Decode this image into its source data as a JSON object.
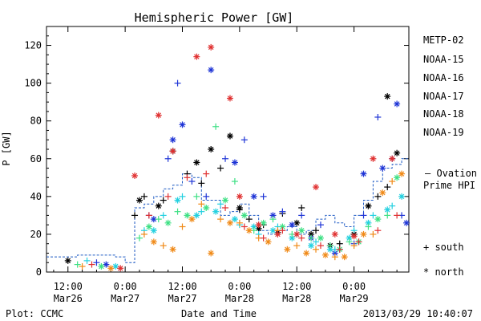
{
  "chart_data": {
    "type": "scatter",
    "title": "Hemispheric Power [GW]",
    "ylabel": "P [GW]",
    "xlabel": "Date and Time",
    "ylim": [
      0,
      130
    ],
    "xlim_hours": [
      -16.5,
      59.5
    ],
    "y_ticks": [
      0,
      20,
      40,
      60,
      80,
      100,
      120
    ],
    "x_ticks": [
      {
        "time": "12:00",
        "date": "Mar26"
      },
      {
        "time": "0:00",
        "date": "Mar27"
      },
      {
        "time": "12:00",
        "date": "Mar27"
      },
      {
        "time": "0:00",
        "date": "Mar28"
      },
      {
        "time": "12:00",
        "date": "Mar28"
      },
      {
        "time": "0:00",
        "date": "Mar29"
      }
    ],
    "x_tick_hours": [
      -12,
      0,
      12,
      24,
      36,
      48
    ],
    "legend_position": "right",
    "series": [
      {
        "name": "METP-02",
        "color": "#000000",
        "south": [
          [
            2,
            30
          ],
          [
            4,
            40
          ],
          [
            8,
            38
          ],
          [
            10,
            64
          ],
          [
            13,
            52
          ],
          [
            16,
            47
          ],
          [
            20,
            55
          ],
          [
            22,
            72
          ],
          [
            24,
            33
          ],
          [
            26,
            28
          ],
          [
            29,
            25
          ],
          [
            33,
            31
          ],
          [
            37,
            34
          ],
          [
            40,
            22
          ],
          [
            45,
            15
          ],
          [
            48,
            20
          ],
          [
            51,
            35
          ],
          [
            53,
            40
          ],
          [
            55,
            45
          ]
        ],
        "north": [
          [
            -12,
            6
          ],
          [
            3,
            38
          ],
          [
            7,
            35
          ],
          [
            10,
            64
          ],
          [
            15,
            58
          ],
          [
            18,
            65
          ],
          [
            22,
            72
          ],
          [
            24,
            34
          ],
          [
            28,
            23
          ],
          [
            32,
            21
          ],
          [
            36,
            26
          ],
          [
            39,
            20
          ],
          [
            43,
            14
          ],
          [
            48,
            20
          ],
          [
            51,
            35
          ],
          [
            55,
            93
          ],
          [
            57,
            63
          ]
        ]
      },
      {
        "name": "NOAA-15",
        "color": "#1f35d6",
        "south": [
          [
            -6,
            5
          ],
          [
            5,
            30
          ],
          [
            9,
            60
          ],
          [
            11,
            100
          ],
          [
            14,
            48
          ],
          [
            17,
            40
          ],
          [
            21,
            60
          ],
          [
            25,
            70
          ],
          [
            29,
            40
          ],
          [
            33,
            32
          ],
          [
            37,
            30
          ],
          [
            41,
            25
          ],
          [
            45,
            12
          ],
          [
            48,
            15
          ],
          [
            50,
            30
          ],
          [
            53,
            82
          ],
          [
            56,
            60
          ],
          [
            58,
            30
          ]
        ],
        "north": [
          [
            -4,
            4
          ],
          [
            6,
            28
          ],
          [
            10,
            70
          ],
          [
            12,
            78
          ],
          [
            18,
            107
          ],
          [
            23,
            58
          ],
          [
            27,
            40
          ],
          [
            31,
            30
          ],
          [
            35,
            25
          ],
          [
            39,
            18
          ],
          [
            44,
            10
          ],
          [
            50,
            52
          ],
          [
            54,
            55
          ],
          [
            57,
            89
          ],
          [
            59,
            26
          ]
        ]
      },
      {
        "name": "NOAA-16",
        "color": "#22d0e0",
        "south": [
          [
            -8,
            6
          ],
          [
            4,
            22
          ],
          [
            8,
            30
          ],
          [
            12,
            40
          ],
          [
            16,
            32
          ],
          [
            20,
            36
          ],
          [
            24,
            25
          ],
          [
            28,
            20
          ],
          [
            32,
            24
          ],
          [
            36,
            20
          ],
          [
            40,
            16
          ],
          [
            44,
            12
          ],
          [
            48,
            22
          ],
          [
            52,
            30
          ],
          [
            56,
            35
          ]
        ],
        "north": [
          [
            -2,
            3
          ],
          [
            6,
            22
          ],
          [
            11,
            38
          ],
          [
            15,
            30
          ],
          [
            19,
            32
          ],
          [
            23,
            28
          ],
          [
            27,
            24
          ],
          [
            31,
            22
          ],
          [
            35,
            18
          ],
          [
            39,
            14
          ],
          [
            43,
            12
          ],
          [
            47,
            18
          ],
          [
            51,
            26
          ],
          [
            55,
            33
          ],
          [
            58,
            40
          ]
        ]
      },
      {
        "name": "NOAA-17",
        "color": "#3ee084",
        "south": [
          [
            -10,
            4
          ],
          [
            3,
            18
          ],
          [
            7,
            28
          ],
          [
            11,
            32
          ],
          [
            15,
            40
          ],
          [
            19,
            77
          ],
          [
            23,
            48
          ],
          [
            27,
            22
          ],
          [
            31,
            28
          ],
          [
            35,
            20
          ],
          [
            39,
            18
          ],
          [
            43,
            14
          ],
          [
            47,
            16
          ],
          [
            51,
            24
          ],
          [
            55,
            30
          ]
        ],
        "north": [
          [
            -5,
            3
          ],
          [
            5,
            24
          ],
          [
            9,
            26
          ],
          [
            13,
            30
          ],
          [
            17,
            34
          ],
          [
            21,
            38
          ],
          [
            25,
            30
          ],
          [
            29,
            26
          ],
          [
            33,
            24
          ],
          [
            37,
            22
          ],
          [
            41,
            18
          ],
          [
            45,
            12
          ],
          [
            49,
            16
          ],
          [
            53,
            28
          ],
          [
            57,
            50
          ]
        ]
      },
      {
        "name": "NOAA-18",
        "color": "#f08a18",
        "south": [
          [
            -9,
            3
          ],
          [
            4,
            20
          ],
          [
            8,
            14
          ],
          [
            12,
            24
          ],
          [
            16,
            36
          ],
          [
            20,
            28
          ],
          [
            24,
            26
          ],
          [
            28,
            18
          ],
          [
            32,
            22
          ],
          [
            36,
            14
          ],
          [
            40,
            12
          ],
          [
            44,
            8
          ],
          [
            48,
            14
          ],
          [
            52,
            20
          ],
          [
            56,
            48
          ]
        ],
        "north": [
          [
            -3,
            2
          ],
          [
            6,
            16
          ],
          [
            10,
            12
          ],
          [
            14,
            28
          ],
          [
            18,
            10
          ],
          [
            22,
            26
          ],
          [
            26,
            22
          ],
          [
            30,
            16
          ],
          [
            34,
            12
          ],
          [
            38,
            10
          ],
          [
            42,
            9
          ],
          [
            46,
            8
          ],
          [
            50,
            20
          ],
          [
            54,
            42
          ],
          [
            58,
            52
          ]
        ]
      },
      {
        "name": "NOAA-19",
        "color": "#e03030",
        "south": [
          [
            -7,
            4
          ],
          [
            5,
            30
          ],
          [
            9,
            40
          ],
          [
            13,
            50
          ],
          [
            17,
            52
          ],
          [
            21,
            34
          ],
          [
            25,
            24
          ],
          [
            29,
            18
          ],
          [
            33,
            22
          ],
          [
            37,
            18
          ],
          [
            41,
            14
          ],
          [
            45,
            12
          ],
          [
            49,
            16
          ],
          [
            53,
            22
          ],
          [
            57,
            30
          ]
        ],
        "north": [
          [
            -1,
            2
          ],
          [
            2,
            51
          ],
          [
            7,
            83
          ],
          [
            10,
            64
          ],
          [
            15,
            114
          ],
          [
            18,
            119
          ],
          [
            22,
            92
          ],
          [
            24,
            40
          ],
          [
            28,
            25
          ],
          [
            32,
            20
          ],
          [
            36,
            20
          ],
          [
            40,
            45
          ],
          [
            44,
            20
          ],
          [
            48,
            19
          ],
          [
            52,
            60
          ],
          [
            56,
            60
          ]
        ]
      }
    ],
    "ovation_prime_hpi": [
      [
        -16.5,
        8
      ],
      [
        -10,
        9
      ],
      [
        -2,
        8
      ],
      [
        0,
        5
      ],
      [
        2,
        34
      ],
      [
        4,
        36
      ],
      [
        6,
        40
      ],
      [
        8,
        44
      ],
      [
        10,
        46
      ],
      [
        12,
        52
      ],
      [
        14,
        50
      ],
      [
        16,
        38
      ],
      [
        18,
        38
      ],
      [
        20,
        30
      ],
      [
        22,
        32
      ],
      [
        24,
        36
      ],
      [
        26,
        30
      ],
      [
        28,
        22
      ],
      [
        30,
        20
      ],
      [
        32,
        22
      ],
      [
        34,
        24
      ],
      [
        36,
        20
      ],
      [
        38,
        22
      ],
      [
        40,
        28
      ],
      [
        42,
        30
      ],
      [
        44,
        26
      ],
      [
        46,
        24
      ],
      [
        48,
        30
      ],
      [
        50,
        38
      ],
      [
        52,
        48
      ],
      [
        54,
        55
      ],
      [
        56,
        57
      ],
      [
        58,
        60
      ]
    ]
  },
  "legend": {
    "entries": [
      "METP-02",
      "NOAA-15",
      "NOAA-16",
      "NOAA-17",
      "NOAA-18",
      "NOAA-19"
    ],
    "colors": [
      "#000000",
      "#1f35d6",
      "#22d0e0",
      "#3ee084",
      "#f08a18",
      "#e03030"
    ],
    "ovation_label_1": "– Ovation",
    "ovation_label_2": "Prime HPI",
    "ovation_color": "#1f5bc4",
    "south_label": "+ south",
    "north_label": "* north"
  },
  "footer": {
    "left": "Plot: CCMC",
    "center": "Date and Time",
    "right": "2013/03/29 10:40:07"
  }
}
